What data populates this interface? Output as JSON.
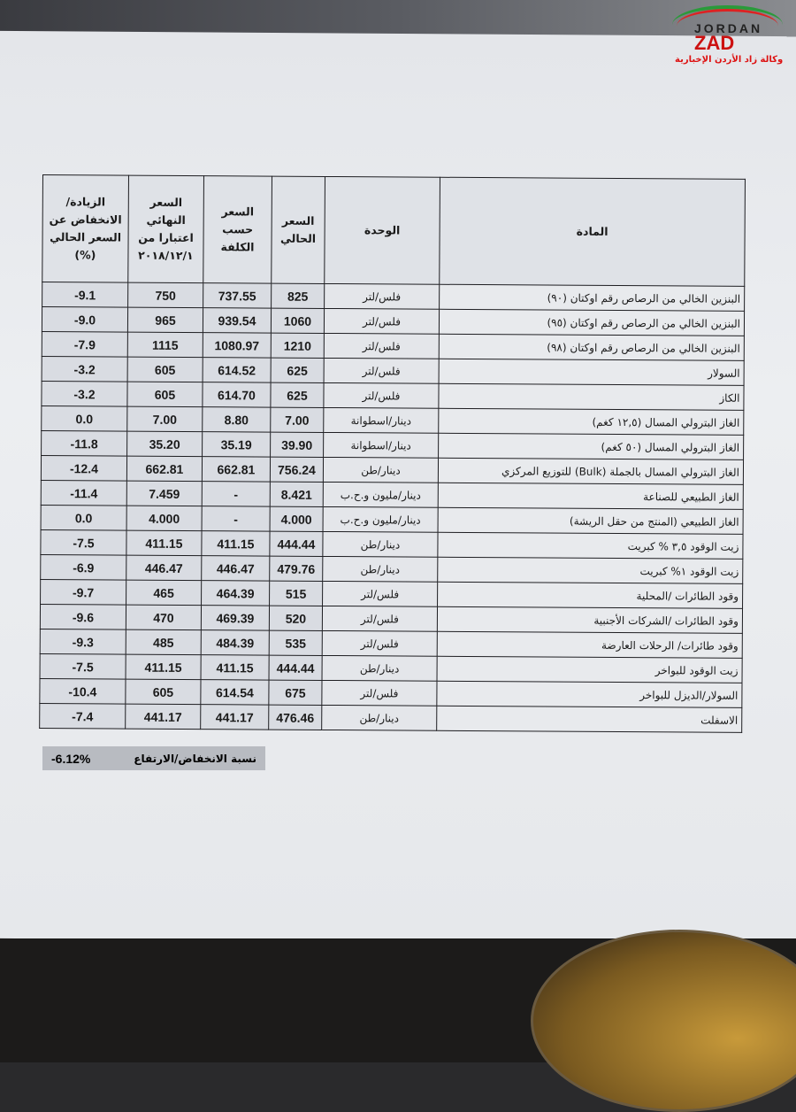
{
  "logo": {
    "text": "www. JORDAN ZAD .com",
    "tagline": "وكالة زاد الأردن الإخبارية"
  },
  "table": {
    "headers": {
      "change": "الزيادة/الانخفاض عن السعر الحالي (%)",
      "final_price": "السعر النهائي اعتبارا من ٢٠١٨/١٢/١",
      "cost_price": "السعر حسب الكلفة",
      "current_price": "السعر الحالي",
      "unit": "الوحدة",
      "material": "المادة"
    },
    "rows": [
      {
        "change": "-9.1",
        "final_price": "750",
        "cost_price": "737.55",
        "current_price": "825",
        "unit": "فلس/لتر",
        "material": "البنزين الخالي من الرصاص رقم اوكتان (٩٠)"
      },
      {
        "change": "-9.0",
        "final_price": "965",
        "cost_price": "939.54",
        "current_price": "1060",
        "unit": "فلس/لتر",
        "material": "البنزين الخالي من الرصاص رقم اوكتان (٩٥)"
      },
      {
        "change": "-7.9",
        "final_price": "1115",
        "cost_price": "1080.97",
        "current_price": "1210",
        "unit": "فلس/لتر",
        "material": "البنزين الخالي من الرصاص رقم اوكتان (٩٨)"
      },
      {
        "change": "-3.2",
        "final_price": "605",
        "cost_price": "614.52",
        "current_price": "625",
        "unit": "فلس/لتر",
        "material": "السولار"
      },
      {
        "change": "-3.2",
        "final_price": "605",
        "cost_price": "614.70",
        "current_price": "625",
        "unit": "فلس/لتر",
        "material": "الكاز"
      },
      {
        "change": "0.0",
        "final_price": "7.00",
        "cost_price": "8.80",
        "current_price": "7.00",
        "unit": "دينار/اسطوانة",
        "material": "الغاز البترولي المسال (١٢,٥ كغم)"
      },
      {
        "change": "-11.8",
        "final_price": "35.20",
        "cost_price": "35.19",
        "current_price": "39.90",
        "unit": "دينار/اسطوانة",
        "material": "الغاز البترولي المسال (٥٠ كغم)"
      },
      {
        "change": "-12.4",
        "final_price": "662.81",
        "cost_price": "662.81",
        "current_price": "756.24",
        "unit": "دينار/طن",
        "material": "الغاز البترولي المسال بالجملة (Bulk) للتوزيع المركزي"
      },
      {
        "change": "-11.4",
        "final_price": "7.459",
        "cost_price": "-",
        "current_price": "8.421",
        "unit": "دينار/مليون و.ح.ب",
        "material": "الغاز الطبيعي للصناعة"
      },
      {
        "change": "0.0",
        "final_price": "4.000",
        "cost_price": "-",
        "current_price": "4.000",
        "unit": "دينار/مليون و.ح.ب",
        "material": "الغاز الطبيعي (المنتج من حقل الريشة)"
      },
      {
        "change": "-7.5",
        "final_price": "411.15",
        "cost_price": "411.15",
        "current_price": "444.44",
        "unit": "دينار/طن",
        "material": "زيت الوقود ٣,٥ % كبريت"
      },
      {
        "change": "-6.9",
        "final_price": "446.47",
        "cost_price": "446.47",
        "current_price": "479.76",
        "unit": "دينار/طن",
        "material": "زيت الوقود ١% كبريت"
      },
      {
        "change": "-9.7",
        "final_price": "465",
        "cost_price": "464.39",
        "current_price": "515",
        "unit": "فلس/لتر",
        "material": "وقود الطائرات /المحلية"
      },
      {
        "change": "-9.6",
        "final_price": "470",
        "cost_price": "469.39",
        "current_price": "520",
        "unit": "فلس/لتر",
        "material": "وقود الطائرات /الشركات الأجنبية"
      },
      {
        "change": "-9.3",
        "final_price": "485",
        "cost_price": "484.39",
        "current_price": "535",
        "unit": "فلس/لتر",
        "material": "وقود طائرات/ الرحلات العارضة"
      },
      {
        "change": "-7.5",
        "final_price": "411.15",
        "cost_price": "411.15",
        "current_price": "444.44",
        "unit": "دينار/طن",
        "material": "زيت الوقود للبواخر"
      },
      {
        "change": "-10.4",
        "final_price": "605",
        "cost_price": "614.54",
        "current_price": "675",
        "unit": "فلس/لتر",
        "material": "السولار/الديزل للبواخر"
      },
      {
        "change": "-7.4",
        "final_price": "441.17",
        "cost_price": "441.17",
        "current_price": "476.46",
        "unit": "دينار/طن",
        "material": "الاسفلت"
      }
    ]
  },
  "summary": {
    "label": "نسبة الانخفاض/الارتفاع",
    "value": "-6.12%"
  }
}
